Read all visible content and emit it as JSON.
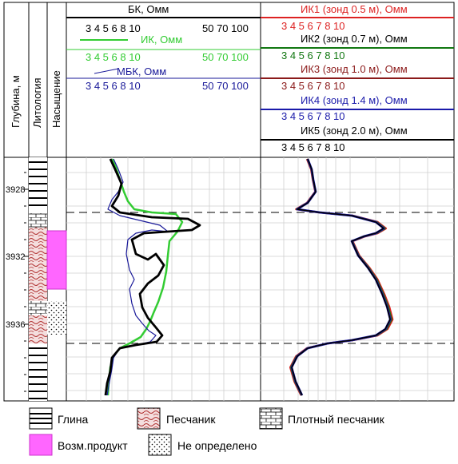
{
  "left_headers": {
    "depth": "Глубина, м",
    "lithology": "Литология",
    "saturation": "Насыщение"
  },
  "depth_ticks": [
    "3928",
    "3932",
    "3936"
  ],
  "left_panel": {
    "bk_label": "БК, Омм",
    "ik_label": "ИК, Омм",
    "mbk_label": "МБК, Омм",
    "scale_low": "3 4 5 6 8 10",
    "scale_high": "50 70 100",
    "bk_color": "#000000",
    "ik_color": "#33cc33",
    "mbk_color": "#1a1a99"
  },
  "right_panel": {
    "probes": [
      {
        "label": "ИК1 (зонд 0.5 м), Омм",
        "color": "#dd2222"
      },
      {
        "label": "ИК2 (зонд 0.7 м), Омм",
        "color": "#117711"
      },
      {
        "label": "ИК3 (зонд 1.0 м), Омм",
        "color": "#8b1a1a"
      },
      {
        "label": "ИК4 (зонд 1.4 м), Омм",
        "color": "#1a1aaa"
      },
      {
        "label": "ИК5 (зонд 2.0 м), Омм",
        "color": "#000000"
      }
    ],
    "scale": "3 4 5 6 7 8 10"
  },
  "legend": {
    "clay": "Глина",
    "sandstone": "Песчаник",
    "dense_sandstone": "Плотный песчаник",
    "possible_product": "Возм.продукт",
    "undefined": "Не определено",
    "product_color": "#ff66ff"
  }
}
